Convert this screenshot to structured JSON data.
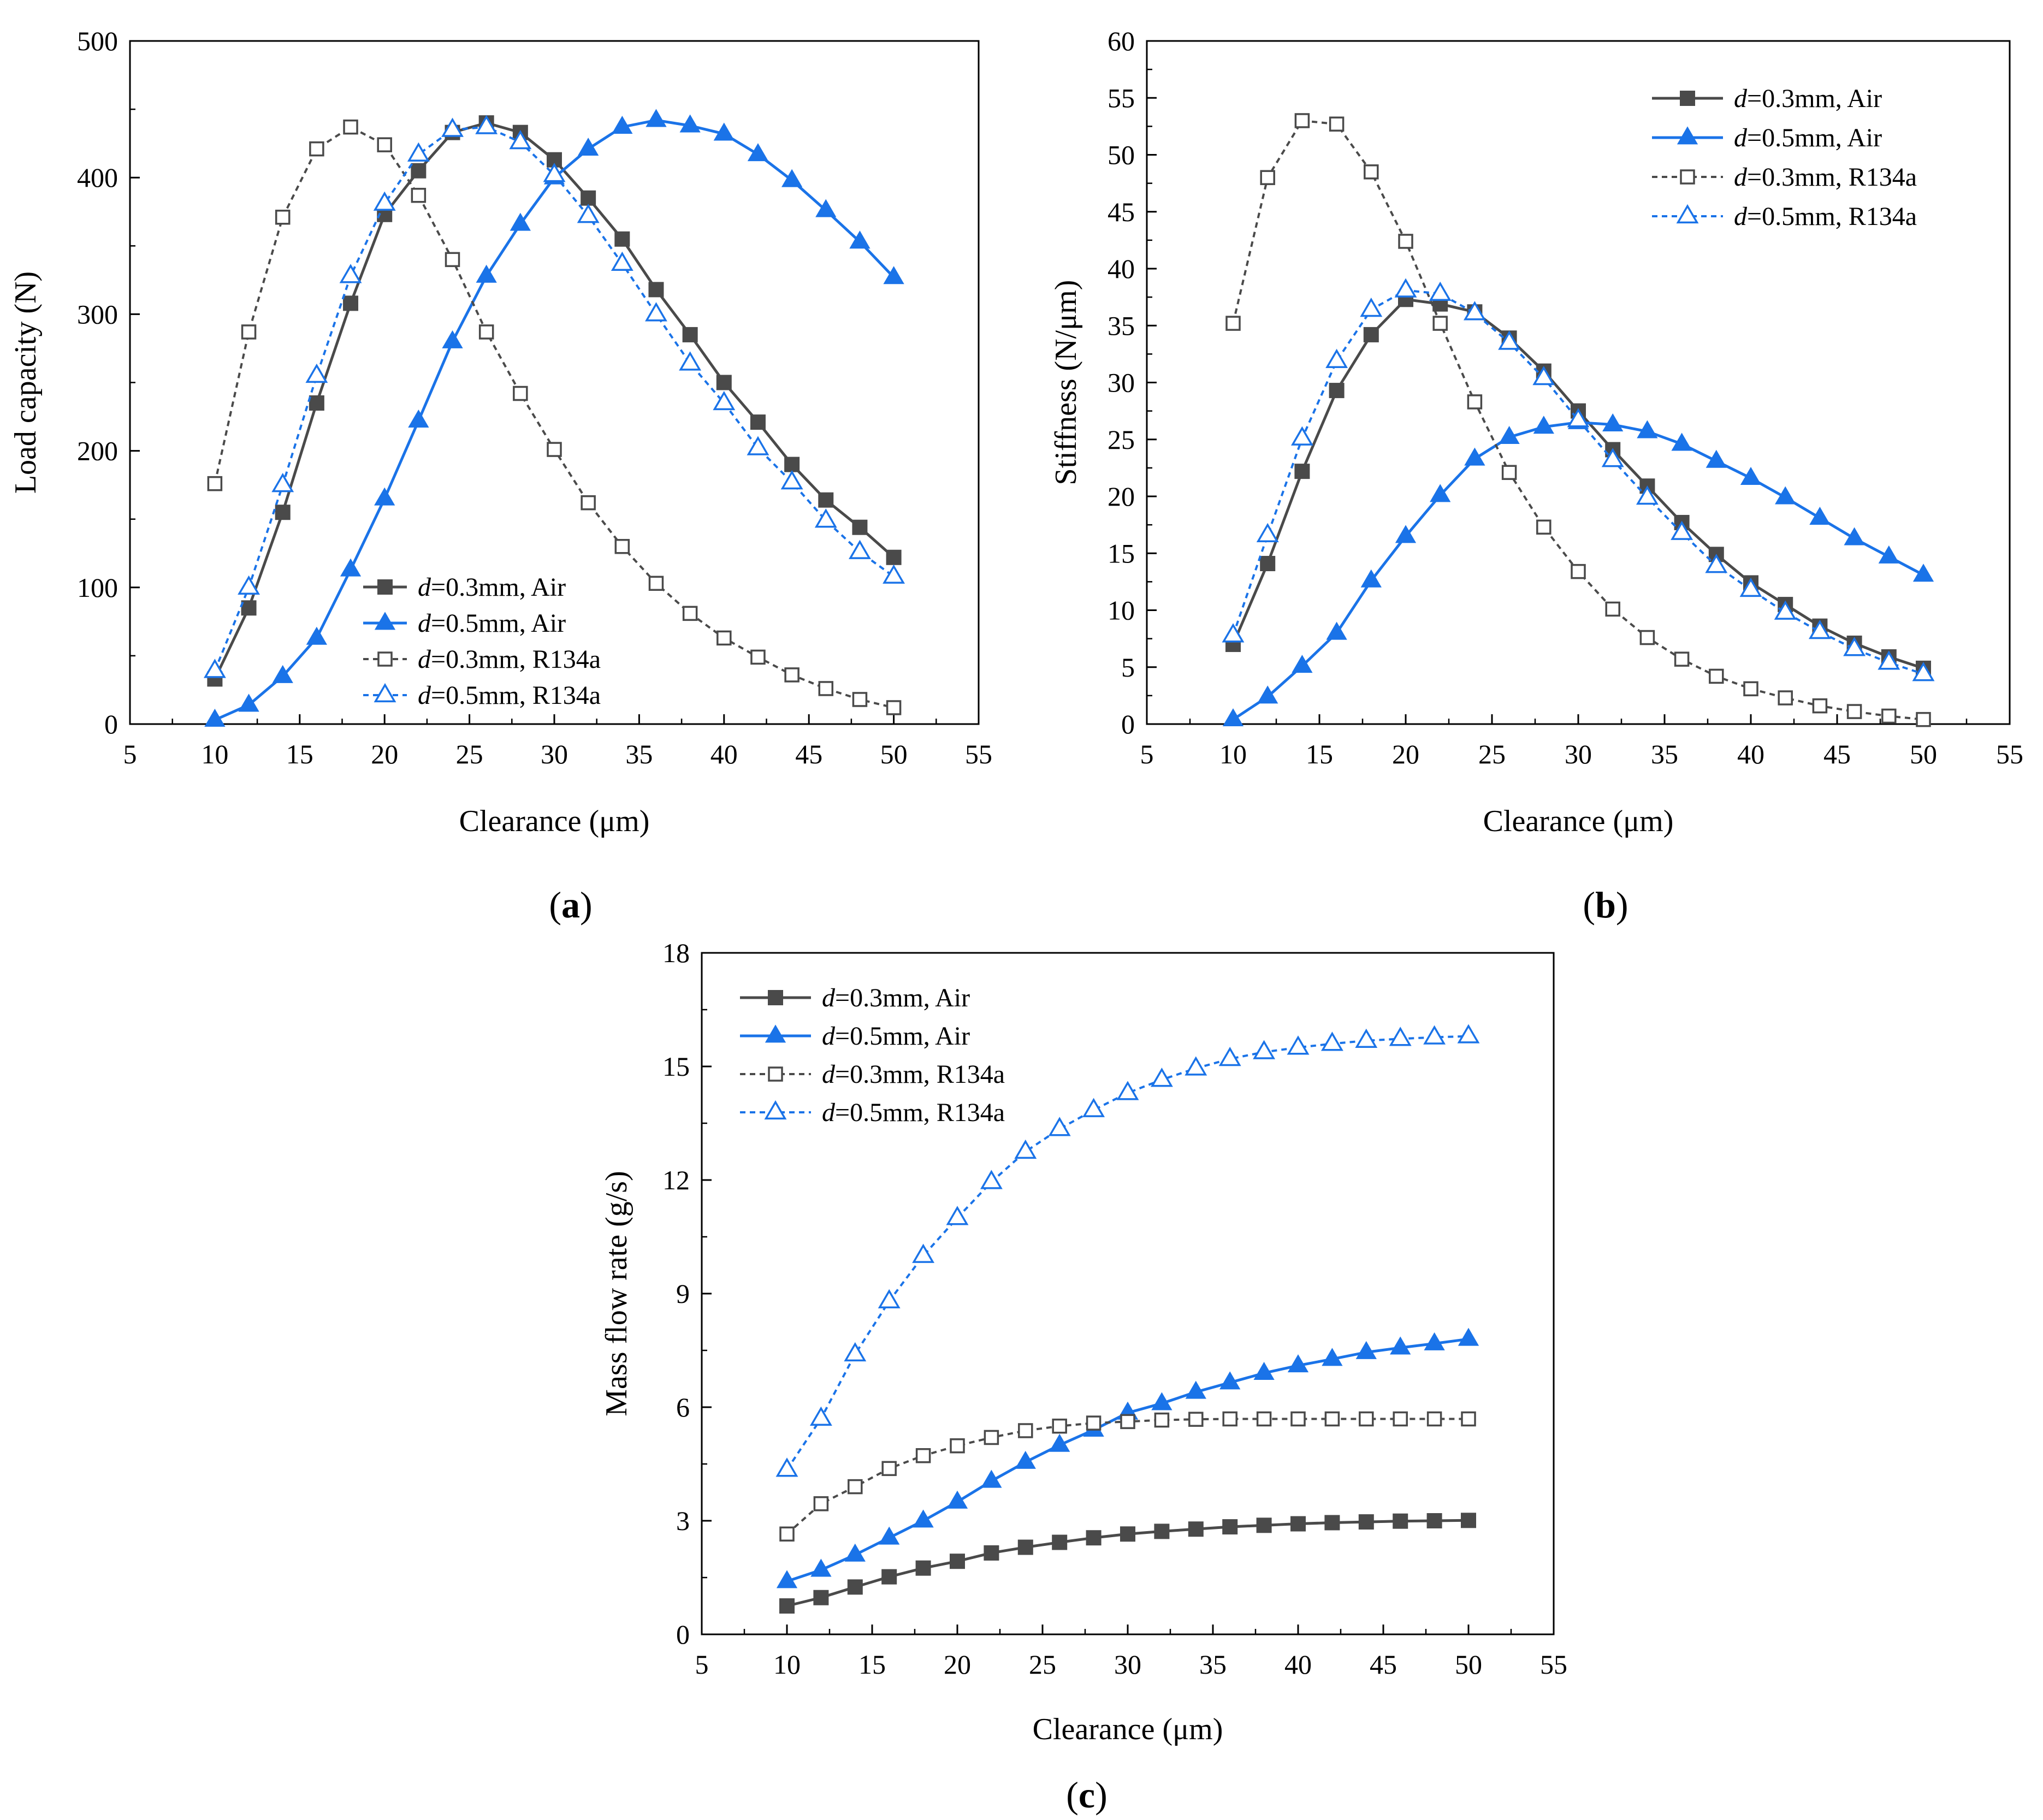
{
  "figure": {
    "panel_labels": [
      "(a)",
      "(b)",
      "(c)"
    ]
  },
  "chart_data": [
    {
      "id": "a",
      "type": "line",
      "panel_label": "(a)",
      "title": "",
      "xlabel": "Clearance (μm)",
      "ylabel": "Load capacity (N)",
      "xlim": [
        5,
        55
      ],
      "ylim": [
        0,
        500
      ],
      "xticks": [
        5,
        10,
        15,
        20,
        25,
        30,
        35,
        40,
        45,
        50,
        55
      ],
      "yticks": [
        0,
        100,
        200,
        300,
        400,
        500
      ],
      "grid": false,
      "legend_position": "bottom-center",
      "x": [
        10,
        12,
        14,
        16,
        18,
        20,
        22,
        24,
        26,
        28,
        30,
        32,
        34,
        36,
        38,
        40,
        42,
        44,
        46,
        48,
        50
      ],
      "series": [
        {
          "name": "d=0.3mm, Air",
          "legend_italic": "d",
          "legend_rest": "=0.3mm, Air",
          "color": "#4a4a4a",
          "dashed": false,
          "marker": "square",
          "filled": true,
          "values": [
            33,
            85,
            155,
            235,
            308,
            373,
            405,
            433,
            440,
            433,
            413,
            385,
            355,
            318,
            285,
            250,
            221,
            190,
            164,
            144,
            122
          ]
        },
        {
          "name": "d=0.5mm, Air",
          "legend_italic": "d",
          "legend_rest": "=0.5mm, Air",
          "color": "#1a73e8",
          "dashed": false,
          "marker": "triangle",
          "filled": true,
          "values": [
            3,
            14,
            35,
            63,
            113,
            165,
            222,
            280,
            328,
            366,
            400,
            421,
            437,
            442,
            438,
            432,
            417,
            398,
            376,
            353,
            327
          ]
        },
        {
          "name": "d=0.3mm, R134a",
          "legend_italic": "d",
          "legend_rest": "=0.3mm, R134a",
          "color": "#4a4a4a",
          "dashed": true,
          "marker": "square",
          "filled": false,
          "values": [
            176,
            287,
            371,
            421,
            437,
            424,
            387,
            340,
            287,
            242,
            201,
            162,
            130,
            103,
            81,
            63,
            49,
            36,
            26,
            18,
            12
          ]
        },
        {
          "name": "d=0.5mm, R134a",
          "legend_italic": "d",
          "legend_rest": "=0.5mm, R134a",
          "color": "#1a73e8",
          "dashed": true,
          "marker": "triangle",
          "filled": false,
          "values": [
            39,
            100,
            175,
            255,
            328,
            381,
            417,
            435,
            437,
            426,
            402,
            372,
            337,
            300,
            264,
            235,
            202,
            177,
            149,
            126,
            108
          ]
        }
      ]
    },
    {
      "id": "b",
      "type": "line",
      "panel_label": "(b)",
      "title": "",
      "xlabel": "Clearance (μm)",
      "ylabel": "Stiffness (N/μm)",
      "xlim": [
        5,
        55
      ],
      "ylim": [
        0,
        60
      ],
      "xticks": [
        5,
        10,
        15,
        20,
        25,
        30,
        35,
        40,
        45,
        50,
        55
      ],
      "yticks": [
        0,
        5,
        10,
        15,
        20,
        25,
        30,
        35,
        40,
        45,
        50,
        55,
        60
      ],
      "grid": false,
      "legend_position": "top-right",
      "x": [
        10,
        12,
        14,
        16,
        18,
        20,
        22,
        24,
        26,
        28,
        30,
        32,
        34,
        36,
        38,
        40,
        42,
        44,
        46,
        48,
        50
      ],
      "series": [
        {
          "name": "d=0.3mm, Air",
          "legend_italic": "d",
          "legend_rest": "=0.3mm, Air",
          "color": "#4a4a4a",
          "dashed": false,
          "marker": "square",
          "filled": true,
          "values": [
            7.0,
            14.1,
            22.2,
            29.3,
            34.2,
            37.3,
            36.9,
            36.2,
            33.9,
            31.0,
            27.5,
            24.1,
            20.9,
            17.7,
            14.9,
            12.4,
            10.5,
            8.6,
            7.1,
            5.9,
            4.9
          ]
        },
        {
          "name": "d=0.5mm, Air",
          "legend_italic": "d",
          "legend_rest": "=0.5mm, Air",
          "color": "#1a73e8",
          "dashed": false,
          "marker": "triangle",
          "filled": true,
          "values": [
            0.4,
            2.4,
            5.1,
            8.0,
            12.6,
            16.5,
            20.1,
            23.3,
            25.2,
            26.1,
            26.5,
            26.3,
            25.7,
            24.6,
            23.1,
            21.6,
            19.9,
            18.1,
            16.3,
            14.7,
            13.1
          ]
        },
        {
          "name": "d=0.3mm, R134a",
          "legend_italic": "d",
          "legend_rest": "=0.3mm, R134a",
          "color": "#4a4a4a",
          "dashed": true,
          "marker": "square",
          "filled": false,
          "values": [
            35.2,
            48.0,
            53.0,
            52.7,
            48.5,
            42.4,
            35.2,
            28.3,
            22.1,
            17.3,
            13.4,
            10.1,
            7.6,
            5.7,
            4.2,
            3.1,
            2.3,
            1.6,
            1.1,
            0.7,
            0.4
          ]
        },
        {
          "name": "d=0.5mm, R134a",
          "legend_italic": "d",
          "legend_rest": "=0.5mm, R134a",
          "color": "#1a73e8",
          "dashed": true,
          "marker": "triangle",
          "filled": false,
          "values": [
            7.8,
            16.6,
            25.1,
            31.9,
            36.4,
            38.1,
            37.8,
            36.1,
            33.5,
            30.4,
            26.7,
            23.2,
            19.9,
            16.8,
            13.9,
            11.8,
            9.8,
            8.1,
            6.6,
            5.4,
            4.4
          ]
        }
      ]
    },
    {
      "id": "c",
      "type": "line",
      "panel_label": "(c)",
      "title": "",
      "xlabel": "Clearance (μm)",
      "ylabel": "Mass flow rate (g/s)",
      "xlim": [
        5,
        55
      ],
      "ylim": [
        0,
        18
      ],
      "xticks": [
        5,
        10,
        15,
        20,
        25,
        30,
        35,
        40,
        45,
        50,
        55
      ],
      "yticks": [
        0,
        3,
        6,
        9,
        12,
        15,
        18
      ],
      "grid": false,
      "legend_position": "top-left",
      "x": [
        10,
        12,
        14,
        16,
        18,
        20,
        22,
        24,
        26,
        28,
        30,
        32,
        34,
        36,
        38,
        40,
        42,
        44,
        46,
        48,
        50
      ],
      "series": [
        {
          "name": "d=0.3mm, Air",
          "legend_italic": "d",
          "legend_rest": "=0.3mm, Air",
          "color": "#4a4a4a",
          "dashed": false,
          "marker": "square",
          "filled": true,
          "values": [
            0.75,
            0.97,
            1.25,
            1.52,
            1.75,
            1.93,
            2.15,
            2.3,
            2.43,
            2.55,
            2.65,
            2.72,
            2.78,
            2.84,
            2.88,
            2.92,
            2.95,
            2.97,
            2.99,
            3.0,
            3.01
          ]
        },
        {
          "name": "d=0.5mm, Air",
          "legend_italic": "d",
          "legend_rest": "=0.5mm, Air",
          "color": "#1a73e8",
          "dashed": false,
          "marker": "triangle",
          "filled": true,
          "values": [
            1.4,
            1.7,
            2.1,
            2.55,
            3.0,
            3.5,
            4.05,
            4.55,
            5.0,
            5.4,
            5.85,
            6.1,
            6.4,
            6.65,
            6.9,
            7.1,
            7.27,
            7.45,
            7.57,
            7.68,
            7.8
          ]
        },
        {
          "name": "d=0.3mm, R134a",
          "legend_italic": "d",
          "legend_rest": "=0.3mm, R134a",
          "color": "#4a4a4a",
          "dashed": true,
          "marker": "square",
          "filled": false,
          "values": [
            2.65,
            3.45,
            3.9,
            4.38,
            4.72,
            4.98,
            5.2,
            5.38,
            5.5,
            5.58,
            5.62,
            5.66,
            5.68,
            5.69,
            5.69,
            5.69,
            5.69,
            5.69,
            5.69,
            5.69,
            5.69
          ]
        },
        {
          "name": "d=0.5mm, R134a",
          "legend_italic": "d",
          "legend_rest": "=0.5mm, R134a",
          "color": "#1a73e8",
          "dashed": true,
          "marker": "triangle",
          "filled": false,
          "values": [
            4.35,
            5.7,
            7.4,
            8.8,
            10.0,
            11.0,
            11.95,
            12.75,
            13.35,
            13.85,
            14.3,
            14.65,
            14.95,
            15.2,
            15.38,
            15.5,
            15.6,
            15.68,
            15.73,
            15.77,
            15.8
          ]
        }
      ]
    }
  ]
}
